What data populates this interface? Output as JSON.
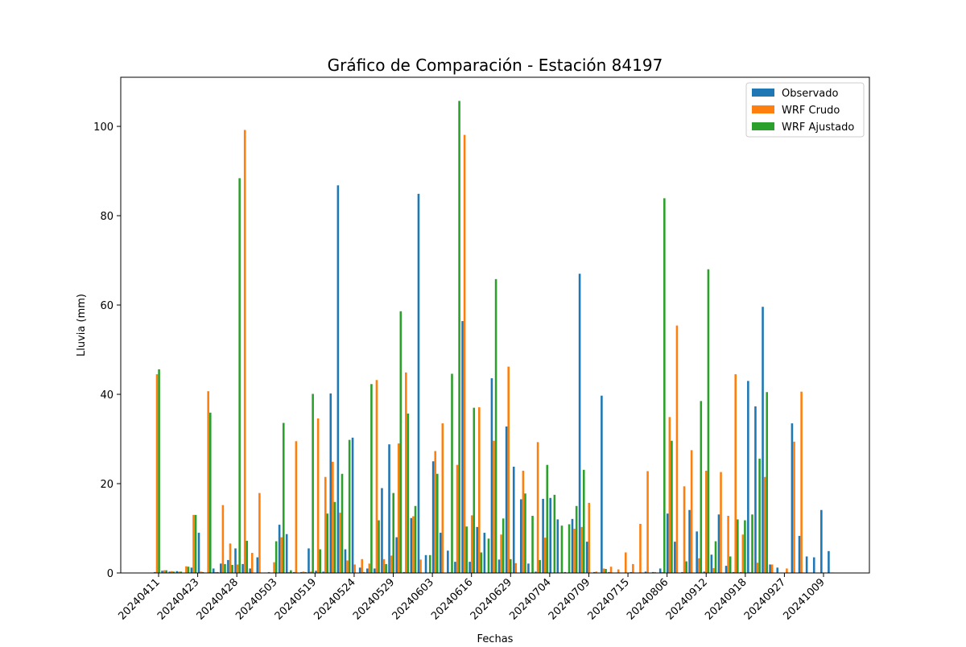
{
  "chart_data": {
    "type": "bar",
    "title": "Gráfico de Comparación - Estación 84197",
    "xlabel": "Fechas",
    "ylabel": "Lluvia (mm)",
    "ylim": [
      0,
      111
    ],
    "yticks": [
      0,
      20,
      40,
      60,
      80,
      100
    ],
    "xtick_labels": [
      "20240411",
      "20240423",
      "20240428",
      "20240503",
      "20240519",
      "20240524",
      "20240529",
      "20240603",
      "20240616",
      "20240629",
      "20240704",
      "20240709",
      "20240715",
      "20240806",
      "20240912",
      "20240918",
      "20240927",
      "20241009"
    ],
    "legend_position": "top-right",
    "grid": false,
    "series": [
      {
        "name": "Observado",
        "color": "#1f77b4",
        "values": [
          0.2,
          0.5,
          0.3,
          0.4,
          0.1,
          1.2,
          9.0,
          0.1,
          1.0,
          2.1,
          2.9,
          5.5,
          2.0,
          1.0,
          3.5,
          0.1,
          0.1,
          10.8,
          8.7,
          0.2,
          0.2,
          5.5,
          0.5,
          0.3,
          40.2,
          86.8,
          5.3,
          30.3,
          1.2,
          1.0,
          1.0,
          19.0,
          28.8,
          8.0,
          0.2,
          12.3,
          84.9,
          4.0,
          25.0,
          9.0,
          5.0,
          2.5,
          56.4,
          2.5,
          10.3,
          9.0,
          43.6,
          3.0,
          32.8,
          23.8,
          16.5,
          2.1,
          0.3,
          16.6,
          16.8,
          12.0,
          0.2,
          12.1,
          67.0,
          7.0,
          0.2,
          39.7,
          0.2,
          0.1,
          0.1,
          0.2,
          0.1,
          0.3,
          0.2,
          1.0,
          13.3,
          7.0,
          0.2,
          14.1,
          9.3,
          0.3,
          4.1,
          13.1,
          1.6,
          0.2,
          0.2,
          43.0,
          37.3,
          59.6,
          1.9,
          1.2,
          0.1,
          33.5,
          8.3,
          3.7,
          3.5,
          14.1,
          4.9
        ]
      },
      {
        "name": "WRF Crudo",
        "color": "#ff7f0e",
        "values": [
          44.5,
          0.6,
          0.4,
          0.3,
          1.5,
          13.0,
          0.3,
          40.7,
          0.2,
          15.2,
          6.6,
          1.9,
          99.2,
          4.5,
          17.9,
          0.1,
          2.4,
          8.0,
          0.2,
          29.5,
          0.3,
          0.3,
          34.6,
          21.5,
          24.9,
          13.5,
          2.8,
          1.9,
          3.1,
          2.1,
          43.2,
          3.1,
          3.9,
          29.0,
          44.9,
          12.7,
          3.0,
          0.1,
          27.3,
          33.5,
          0.2,
          24.2,
          98.1,
          12.9,
          37.1,
          0.1,
          29.6,
          8.6,
          46.2,
          2.2,
          22.9,
          0.1,
          29.3,
          7.9,
          0.1,
          0.1,
          0.1,
          9.9,
          10.3,
          15.7,
          0.3,
          1.0,
          1.4,
          0.8,
          4.6,
          2.0,
          11.0,
          22.8,
          0.2,
          0.2,
          34.9,
          55.4,
          19.4,
          27.5,
          3.3,
          22.9,
          1.1,
          22.6,
          12.8,
          44.5,
          8.6,
          0.2,
          2.3,
          21.5,
          1.9,
          0.1,
          1.0,
          29.4,
          40.6,
          0.1,
          0.1,
          0.1,
          0.1
        ]
      },
      {
        "name": "WRF Ajustado",
        "color": "#2ca02c",
        "values": [
          45.6,
          0.6,
          0.3,
          0.3,
          1.4,
          13.0,
          0.2,
          35.9,
          0.2,
          2.0,
          1.8,
          88.4,
          7.2,
          0.1,
          0.1,
          0.2,
          7.1,
          33.6,
          0.6,
          0.1,
          0.2,
          40.1,
          5.3,
          13.3,
          15.9,
          22.2,
          29.8,
          0.1,
          0.2,
          42.3,
          11.8,
          2.0,
          17.9,
          58.6,
          35.7,
          15.0,
          0.1,
          4.0,
          22.2,
          0.1,
          44.6,
          105.7,
          10.4,
          37.0,
          4.6,
          7.7,
          65.8,
          12.2,
          3.1,
          0.1,
          17.8,
          12.8,
          2.9,
          24.2,
          17.5,
          10.6,
          10.9,
          15.0,
          23.1,
          0.1,
          0.1,
          0.9,
          0.1,
          0.1,
          0.1,
          0.1,
          0.1,
          0.1,
          0.1,
          83.9,
          29.6,
          0.1,
          2.6,
          0.1,
          38.5,
          68.0,
          7.1,
          0.1,
          3.7,
          12.0,
          11.8,
          13.1,
          25.6,
          40.5,
          0.1,
          0.1,
          0.1,
          0.1,
          0.1,
          0.1,
          0.1,
          0.1,
          0.1
        ]
      }
    ]
  }
}
